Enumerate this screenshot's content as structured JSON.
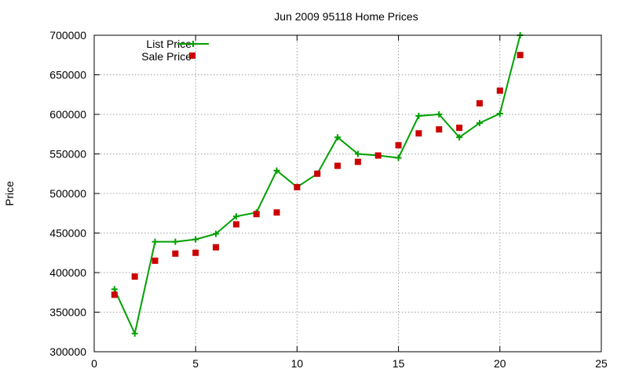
{
  "chart_data": {
    "type": "line",
    "title": "Jun 2009 95118 Home Prices",
    "xlabel": "",
    "ylabel": "Price",
    "xlim": [
      0,
      25
    ],
    "ylim": [
      300000,
      700000
    ],
    "x_ticks": [
      0,
      5,
      10,
      15,
      20,
      25
    ],
    "y_ticks": [
      300000,
      350000,
      400000,
      450000,
      500000,
      550000,
      600000,
      650000,
      700000
    ],
    "grid": true,
    "legend_position": "top-left",
    "series": [
      {
        "name": "List Price",
        "style": "line-with-plus-markers",
        "color": "#00a000",
        "x": [
          1,
          2,
          3,
          4,
          5,
          6,
          7,
          8,
          9,
          10,
          11,
          12,
          13,
          14,
          15,
          16,
          17,
          18,
          19,
          20,
          21
        ],
        "values": [
          379000,
          323000,
          439000,
          439000,
          442000,
          449000,
          471000,
          476000,
          529000,
          508000,
          525000,
          571000,
          550000,
          548000,
          545000,
          598000,
          600000,
          571000,
          589000,
          601000,
          700000
        ]
      },
      {
        "name": "Sale Price",
        "style": "square-markers",
        "color": "#cc0000",
        "x": [
          1,
          2,
          3,
          4,
          5,
          6,
          7,
          8,
          9,
          10,
          11,
          12,
          13,
          14,
          15,
          16,
          17,
          18,
          19,
          20,
          21
        ],
        "values": [
          372000,
          395000,
          415000,
          424000,
          425000,
          432000,
          461000,
          474000,
          476000,
          508000,
          525000,
          535000,
          540000,
          548000,
          561000,
          576000,
          581000,
          583000,
          614000,
          630000,
          675000
        ]
      }
    ]
  }
}
